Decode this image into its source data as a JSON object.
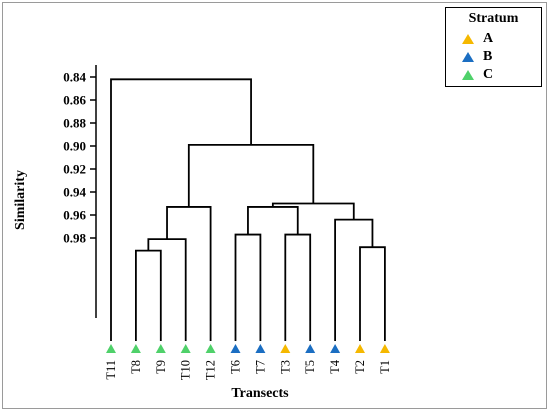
{
  "figure": {
    "ylabel": "Similarity",
    "xlabel": "Transects",
    "yticks": [
      "0.84",
      "0.86",
      "0.88",
      "0.90",
      "0.92",
      "0.94",
      "0.96",
      "0.98"
    ]
  },
  "legend": {
    "title": "Stratum",
    "items": [
      {
        "label": "A",
        "color": "#f5b800"
      },
      {
        "label": "B",
        "color": "#1b6ec2"
      },
      {
        "label": "C",
        "color": "#4fd16a"
      }
    ]
  },
  "colors": {
    "A": "#f5b800",
    "B": "#1b6ec2",
    "C": "#4fd16a"
  },
  "leaves": [
    {
      "label": "T11",
      "stratum": "C"
    },
    {
      "label": "T8",
      "stratum": "C"
    },
    {
      "label": "T9",
      "stratum": "C"
    },
    {
      "label": "T10",
      "stratum": "C"
    },
    {
      "label": "T12",
      "stratum": "C"
    },
    {
      "label": "T6",
      "stratum": "B"
    },
    {
      "label": "T7",
      "stratum": "B"
    },
    {
      "label": "T3",
      "stratum": "A"
    },
    {
      "label": "T5",
      "stratum": "B"
    },
    {
      "label": "T4",
      "stratum": "B"
    },
    {
      "label": "T2",
      "stratum": "A"
    },
    {
      "label": "T1",
      "stratum": "A"
    }
  ],
  "merges": [
    {
      "a": "T8",
      "b": "T9",
      "sim": 0.991
    },
    {
      "a": "m1",
      "b": "T10",
      "sim": 0.981
    },
    {
      "a": "m2",
      "b": "T12",
      "sim": 0.953
    },
    {
      "a": "T6",
      "b": "T7",
      "sim": 0.977
    },
    {
      "a": "T3",
      "b": "T5",
      "sim": 0.977
    },
    {
      "a": "m4",
      "b": "m5",
      "sim": 0.953
    },
    {
      "a": "T2",
      "b": "T1",
      "sim": 0.988
    },
    {
      "a": "T4",
      "b": "m7",
      "sim": 0.964
    },
    {
      "a": "m6",
      "b": "m8",
      "sim": 0.95
    },
    {
      "a": "m3",
      "b": "m9",
      "sim": 0.899
    },
    {
      "a": "T11",
      "b": "m10",
      "sim": 0.842
    }
  ]
}
